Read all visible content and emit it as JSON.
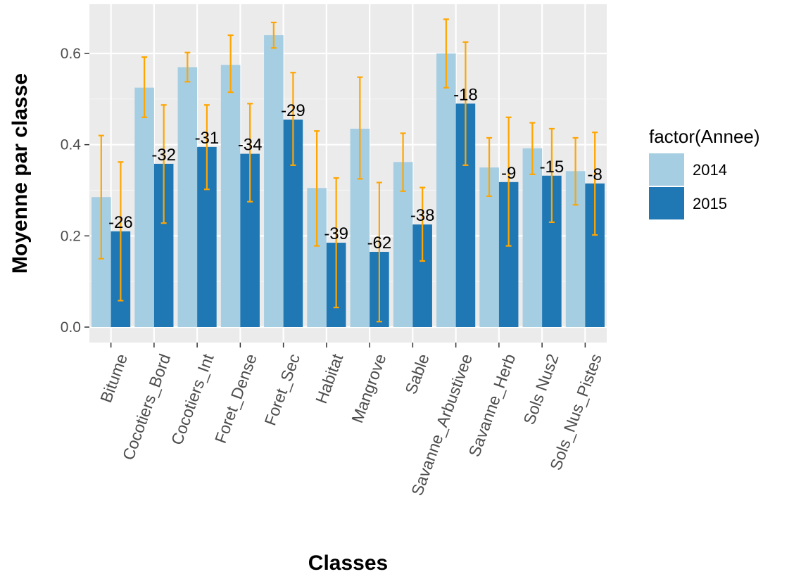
{
  "chart_data": {
    "type": "bar",
    "title": "",
    "xlabel": "Classes",
    "ylabel": "Moyenne par classe",
    "ylim": [
      -0.02,
      0.7
    ],
    "yticks": [
      "0.0",
      "0.2",
      "0.4",
      "0.6"
    ],
    "ytick_values": [
      0,
      0.2,
      0.4,
      0.6
    ],
    "grid": true,
    "legend": {
      "title": "factor(Annee)",
      "placement": "right"
    },
    "categories": [
      "Bitume",
      "Cocotiers_Bord",
      "Cocotiers_Int",
      "Foret_Dense",
      "Foret_Sec",
      "Habitat",
      "Mangrove",
      "Sable",
      "Savanne_Arbustivee",
      "Savanne_Herb",
      "Sols Nus2",
      "Sols_Nus_Pistes"
    ],
    "series": [
      {
        "name": "2014",
        "color": "#a6cee3",
        "values": [
          0.285,
          0.525,
          0.57,
          0.575,
          0.64,
          0.305,
          0.435,
          0.362,
          0.6,
          0.35,
          0.392,
          0.342
        ],
        "err_low": [
          0.15,
          0.46,
          0.538,
          0.515,
          0.612,
          0.178,
          0.325,
          0.298,
          0.525,
          0.287,
          0.335,
          0.268
        ],
        "err_high": [
          0.42,
          0.592,
          0.602,
          0.64,
          0.668,
          0.43,
          0.548,
          0.425,
          0.675,
          0.415,
          0.448,
          0.415
        ]
      },
      {
        "name": "2015",
        "color": "#1f78b4",
        "values": [
          0.21,
          0.358,
          0.395,
          0.38,
          0.455,
          0.185,
          0.165,
          0.225,
          0.49,
          0.318,
          0.332,
          0.315
        ],
        "err_low": [
          0.058,
          0.228,
          0.302,
          0.275,
          0.355,
          0.043,
          0.012,
          0.145,
          0.355,
          0.178,
          0.23,
          0.202
        ],
        "err_high": [
          0.362,
          0.487,
          0.487,
          0.49,
          0.558,
          0.327,
          0.317,
          0.306,
          0.625,
          0.46,
          0.435,
          0.427
        ]
      }
    ],
    "error_bar_color": "#ffa500",
    "labels": [
      "-26",
      "-32",
      "-31",
      "-34",
      "-29",
      "-39",
      "-62",
      "-38",
      "-18",
      "-9",
      "-15",
      "-8"
    ]
  }
}
